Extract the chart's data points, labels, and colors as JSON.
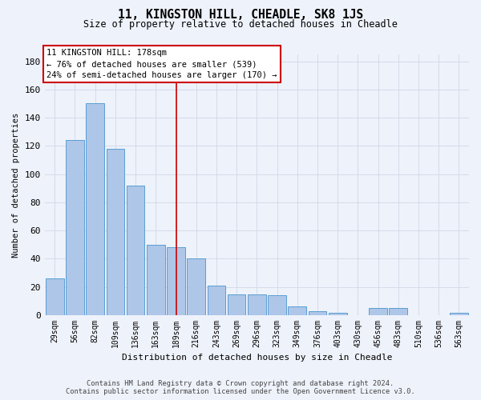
{
  "title": "11, KINGSTON HILL, CHEADLE, SK8 1JS",
  "subtitle": "Size of property relative to detached houses in Cheadle",
  "xlabel": "Distribution of detached houses by size in Cheadle",
  "ylabel": "Number of detached properties",
  "categories": [
    "29sqm",
    "56sqm",
    "82sqm",
    "109sqm",
    "136sqm",
    "163sqm",
    "189sqm",
    "216sqm",
    "243sqm",
    "269sqm",
    "296sqm",
    "323sqm",
    "349sqm",
    "376sqm",
    "403sqm",
    "430sqm",
    "456sqm",
    "483sqm",
    "510sqm",
    "536sqm",
    "563sqm"
  ],
  "values": [
    26,
    124,
    150,
    118,
    92,
    50,
    48,
    40,
    21,
    15,
    15,
    14,
    6,
    3,
    2,
    0,
    5,
    5,
    0,
    0,
    2
  ],
  "bar_color": "#aec6e8",
  "bar_edge_color": "#5a9fd4",
  "red_line_index": 6,
  "property_label": "11 KINGSTON HILL: 178sqm",
  "annotation_line1": "← 76% of detached houses are smaller (539)",
  "annotation_line2": "24% of semi-detached houses are larger (170) →",
  "annotation_box_color": "#ffffff",
  "annotation_box_edge": "#cc0000",
  "red_line_color": "#cc0000",
  "grid_color": "#d0d8e8",
  "background_color": "#eef2fa",
  "ylim": [
    0,
    185
  ],
  "yticks": [
    0,
    20,
    40,
    60,
    80,
    100,
    120,
    140,
    160,
    180
  ],
  "footer1": "Contains HM Land Registry data © Crown copyright and database right 2024.",
  "footer2": "Contains public sector information licensed under the Open Government Licence v3.0."
}
